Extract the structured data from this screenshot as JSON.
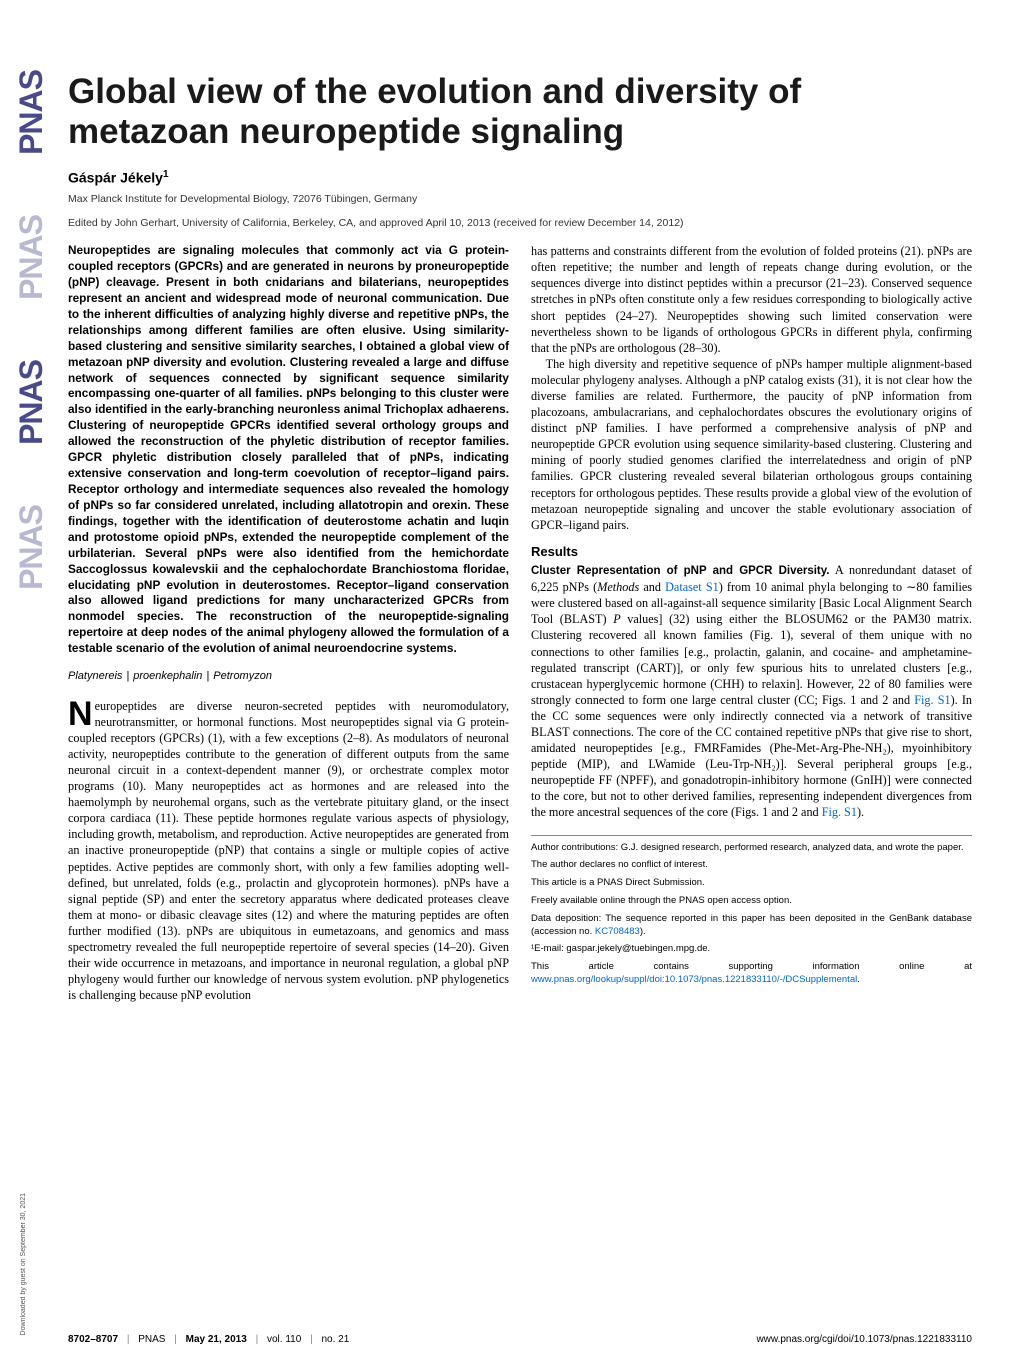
{
  "logo": {
    "text": "PNAS",
    "colors": [
      "#4a4a8a",
      "#b8b8d0",
      "#4a4a8a",
      "#b8b8d0"
    ]
  },
  "title": "Global view of the evolution and diversity of metazoan neuropeptide signaling",
  "author": "Gáspár Jékely",
  "author_sup": "1",
  "affiliation": "Max Planck Institute for Developmental Biology, 72076 Tübingen, Germany",
  "edited": "Edited by John Gerhart, University of California, Berkeley, CA, and approved April 10, 2013 (received for review December 14, 2012)",
  "abstract": "Neuropeptides are signaling molecules that commonly act via G protein-coupled receptors (GPCRs) and are generated in neurons by proneuropeptide (pNP) cleavage. Present in both cnidarians and bilaterians, neuropeptides represent an ancient and widespread mode of neuronal communication. Due to the inherent difficulties of analyzing highly diverse and repetitive pNPs, the relationships among different families are often elusive. Using similarity-based clustering and sensitive similarity searches, I obtained a global view of metazoan pNP diversity and evolution. Clustering revealed a large and diffuse network of sequences connected by significant sequence similarity encompassing one-quarter of all families. pNPs belonging to this cluster were also identified in the early-branching neuronless animal Trichoplax adhaerens. Clustering of neuropeptide GPCRs identified several orthology groups and allowed the reconstruction of the phyletic distribution of receptor families. GPCR phyletic distribution closely paralleled that of pNPs, indicating extensive conservation and long-term coevolution of receptor–ligand pairs. Receptor orthology and intermediate sequences also revealed the homology of pNPs so far considered unrelated, including allatotropin and orexin. These findings, together with the identification of deuterostome achatin and luqin and protostome opioid pNPs, extended the neuropeptide complement of the urbilaterian. Several pNPs were also identified from the hemichordate Saccoglossus kowalevskii and the cephalochordate Branchiostoma floridae, elucidating pNP evolution in deuterostomes. Receptor–ligand conservation also allowed ligand predictions for many uncharacterized GPCRs from nonmodel species. The reconstruction of the neuropeptide-signaling repertoire at deep nodes of the animal phylogeny allowed the formulation of a testable scenario of the evolution of animal neuroendocrine systems.",
  "keywords": [
    "Platynereis",
    "proenkephalin",
    "Petromyzon"
  ],
  "intro_first_letter": "N",
  "intro_first_rest": "europeptides are diverse neuron-secreted peptides with neuromodulatory, neurotransmitter, or hormonal functions. Most neuropeptides signal via G protein-coupled receptors (GPCRs) (1), with a few exceptions (2–8). As modulators of neuronal activity, neuropeptides contribute to the generation of different outputs from the same neuronal circuit in a context-dependent manner (9), or orchestrate complex motor programs (10). Many neuropeptides act as hormones and are released into the haemolymph by neurohemal organs, such as the vertebrate pituitary gland, or the insect corpora cardiaca (11). These peptide hormones regulate various aspects of physiology, including growth, metabolism, and reproduction. Active neuropeptides are generated from an inactive proneuropeptide (pNP) that contains a single or multiple copies of active peptides. Active peptides are commonly short, with only a few families adopting well-defined, but unrelated, folds (e.g., prolactin and glycoprotein hormones). pNPs have a signal peptide (SP) and enter the secretory apparatus where dedicated proteases cleave them at mono- or dibasic cleavage sites (12) and where the maturing peptides are often further modified (13). pNPs are ubiquitous in eumetazoans, and genomics and mass spectrometry revealed the full neuropeptide repertoire of several species (14–20). Given their wide occurrence in metazoans, and importance in neuronal regulation, a global pNP phylogeny would further our knowledge of nervous system evolution. pNP phylogenetics is challenging because pNP evolution",
  "col2_para1": "has patterns and constraints different from the evolution of folded proteins (21). pNPs are often repetitive; the number and length of repeats change during evolution, or the sequences diverge into distinct peptides within a precursor (21–23). Conserved sequence stretches in pNPs often constitute only a few residues corresponding to biologically active short peptides (24–27). Neuropeptides showing such limited conservation were nevertheless shown to be ligands of orthologous GPCRs in different phyla, confirming that the pNPs are orthologous (28–30).",
  "col2_para2": "The high diversity and repetitive sequence of pNPs hamper multiple alignment-based molecular phylogeny analyses. Although a pNP catalog exists (31), it is not clear how the diverse families are related. Furthermore, the paucity of pNP information from placozoans, ambulacrarians, and cephalochordates obscures the evolutionary origins of distinct pNP families. I have performed a comprehensive analysis of pNP and neuropeptide GPCR evolution using sequence similarity-based clustering. Clustering and mining of poorly studied genomes clarified the interrelatedness and origin of pNP families. GPCR clustering revealed several bilaterian orthologous groups containing receptors for orthologous peptides. These results provide a global view of the evolution of metazoan neuropeptide signaling and uncover the stable evolutionary association of GPCR–ligand pairs.",
  "results_head": "Results",
  "results_sub": "Cluster Representation of pNP and GPCR Diversity.",
  "results_body": " A nonredundant dataset of 6,225 pNPs (Methods and Dataset S1) from 10 animal phyla belonging to ∼80 families were clustered based on all-against-all sequence similarity [Basic Local Alignment Search Tool (BLAST) P values] (32) using either the BLOSUM62 or the PAM30 matrix. Clustering recovered all known families (Fig. 1), several of them unique with no connections to other families [e.g., prolactin, galanin, and cocaine- and amphetamine-regulated transcript (CART)], or only few spurious hits to unrelated clusters [e.g., crustacean hyperglycemic hormone (CHH) to relaxin]. However, 22 of 80 families were strongly connected to form one large central cluster (CC; Figs. 1 and 2 and Fig. S1). In the CC some sequences were only indirectly connected via a network of transitive BLAST connections. The core of the CC contained repetitive pNPs that give rise to short, amidated neuropeptides [e.g., FMRFamides (Phe-Met-Arg-Phe-NH₂), myoinhibitory peptide (MIP), and LWamide (Leu-Trp-NH₂)]. Several peripheral groups [e.g., neuropeptide FF (NPFF), and gonadotropin-inhibitory hormone (GnIH)] were connected to the core, but not to other derived families, representing independent divergences from the more ancestral sequences of the core (Figs. 1 and 2 and Fig. S1).",
  "footnotes": {
    "author_contrib": "Author contributions: G.J. designed research, performed research, analyzed data, and wrote the paper.",
    "conflict": "The author declares no conflict of interest.",
    "submission": "This article is a PNAS Direct Submission.",
    "open_access": "Freely available online through the PNAS open access option.",
    "data_deposition": "Data deposition: The sequence reported in this paper has been deposited in the GenBank database (accession no. ",
    "accession": "KC708483",
    "data_deposition_end": ").",
    "email_label": "¹E-mail: ",
    "email": "gaspar.jekely@tuebingen.mpg.de.",
    "supporting": "This article contains supporting information online at ",
    "supporting_link": "www.pnas.org/lookup/suppl/doi:10.1073/pnas.1221833110/-/DCSupplemental",
    "supporting_end": "."
  },
  "footer": {
    "pages": "8702–8707",
    "journal": "PNAS",
    "date": "May 21, 2013",
    "vol": "vol. 110",
    "no": "no. 21",
    "doi": "www.pnas.org/cgi/doi/10.1073/pnas.1221833110"
  },
  "download_note": "Downloaded by guest on September 30, 2021",
  "links": {
    "dataset_s1": "Dataset S1",
    "fig_s1": "Fig. S1"
  },
  "colors": {
    "text": "#000000",
    "link": "#0066cc",
    "logo_dark": "#4a4a8a",
    "logo_light": "#b8b8d0",
    "background": "#ffffff"
  },
  "typography": {
    "title_fontsize": 35,
    "author_fontsize": 14,
    "body_fontsize": 12.2,
    "abstract_fontsize": 11.8,
    "footnote_fontsize": 9.5,
    "footer_fontsize": 10
  }
}
